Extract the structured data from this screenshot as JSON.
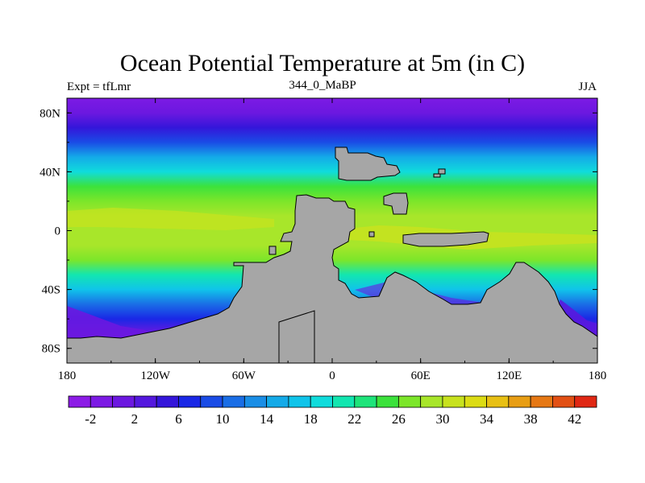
{
  "chart_data": {
    "type": "heatmap",
    "title": "Ocean Potential Temperature at 5m (in C)",
    "left_string": "Expt = tfLmr",
    "center_string": "344_0_MaBP",
    "right_string": "JJA",
    "x_ticks": [
      "180",
      "120W",
      "60W",
      "0",
      "60E",
      "120E",
      "180"
    ],
    "x_tick_values": [
      -180,
      -120,
      -60,
      0,
      60,
      120,
      180
    ],
    "y_ticks": [
      "80N",
      "40N",
      "0",
      "40S",
      "80S"
    ],
    "y_tick_values": [
      80,
      40,
      0,
      -40,
      -80
    ],
    "xlim": [
      -180,
      180
    ],
    "ylim": [
      -90,
      90
    ],
    "zonal_profile": {
      "lat": [
        90,
        80,
        70,
        60,
        50,
        40,
        30,
        20,
        10,
        0,
        -10,
        -20,
        -30,
        -40,
        -50,
        -60,
        -70,
        -80,
        -90
      ],
      "temp": [
        -1,
        1,
        4,
        9,
        14,
        19,
        24,
        27,
        28.5,
        29,
        28,
        26,
        21,
        16,
        11,
        7,
        1,
        -1,
        -1
      ]
    },
    "colorbar": {
      "levels": [
        -4,
        -2,
        0,
        2,
        4,
        6,
        8,
        10,
        12,
        14,
        16,
        18,
        20,
        22,
        24,
        26,
        28,
        30,
        32,
        34,
        36,
        38,
        40,
        42,
        44
      ],
      "labels": [
        "-2",
        "2",
        "6",
        "10",
        "14",
        "18",
        "22",
        "26",
        "30",
        "34",
        "38",
        "42"
      ],
      "label_values": [
        -2,
        2,
        6,
        10,
        14,
        18,
        22,
        26,
        30,
        34,
        38,
        42
      ],
      "colors": [
        "#8c1ce6",
        "#7c1ae4",
        "#6c18e0",
        "#5418de",
        "#3416da",
        "#1a28e6",
        "#1a4ce6",
        "#1a6ee6",
        "#1a8ee6",
        "#14aae8",
        "#10c4ea",
        "#10dcdc",
        "#12e6b0",
        "#1ee47a",
        "#3ce23c",
        "#7ce62a",
        "#a8e62a",
        "#c8e21e",
        "#dcdc14",
        "#e8c014",
        "#e89e14",
        "#e67814",
        "#e25014",
        "#e02814"
      ]
    },
    "land_color": "#a6a6a6"
  }
}
